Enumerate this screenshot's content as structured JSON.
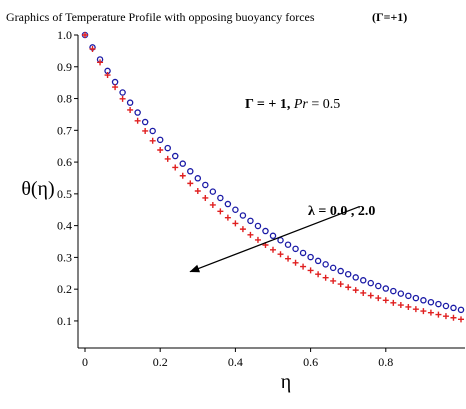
{
  "chart_data": {
    "type": "scatter",
    "title": "Graphics of Temperature Profile with opposing buoyancy forces",
    "title_suffix": "(Γ=+1)",
    "xlabel": "η",
    "ylabel": "θ(η)",
    "xlim": [
      0,
      1.0
    ],
    "ylim": [
      0.04,
      1.0
    ],
    "x_ticks": [
      0,
      0.2,
      0.4,
      0.6,
      0.8
    ],
    "x_tick_labels": [
      "0",
      "0.2",
      "0.4",
      "0.6",
      "0.8"
    ],
    "y_ticks": [
      0.1,
      0.2,
      0.3,
      0.4,
      0.5,
      0.6,
      0.7,
      0.8,
      0.9,
      1.0
    ],
    "y_tick_labels": [
      "0.1",
      "0.2",
      "0.3",
      "0.4",
      "0.5",
      "0.6",
      "0.7",
      "0.8",
      "0.9",
      "1.0"
    ],
    "grid": false,
    "series": [
      {
        "marker": "circle",
        "color": "#1a1aa6",
        "x": [
          0,
          0.02,
          0.04,
          0.06,
          0.08,
          0.1,
          0.12,
          0.14,
          0.16,
          0.18,
          0.2,
          0.22,
          0.24,
          0.26,
          0.28,
          0.3,
          0.32,
          0.34,
          0.36,
          0.38,
          0.4,
          0.42,
          0.44,
          0.46,
          0.48,
          0.5,
          0.52,
          0.54,
          0.56,
          0.58,
          0.6,
          0.62,
          0.64,
          0.66,
          0.68,
          0.7,
          0.72,
          0.74,
          0.76,
          0.78,
          0.8,
          0.82,
          0.84,
          0.86,
          0.88,
          0.9,
          0.92,
          0.94,
          0.96,
          0.98,
          1.0
        ],
        "y": [
          1.0,
          0.961,
          0.923,
          0.887,
          0.852,
          0.819,
          0.787,
          0.756,
          0.726,
          0.698,
          0.67,
          0.644,
          0.619,
          0.595,
          0.571,
          0.549,
          0.528,
          0.507,
          0.487,
          0.468,
          0.45,
          0.432,
          0.415,
          0.399,
          0.383,
          0.368,
          0.354,
          0.34,
          0.327,
          0.314,
          0.301,
          0.289,
          0.278,
          0.267,
          0.257,
          0.247,
          0.237,
          0.228,
          0.219,
          0.21,
          0.202,
          0.194,
          0.186,
          0.179,
          0.172,
          0.165,
          0.159,
          0.153,
          0.147,
          0.141,
          0.135
        ]
      },
      {
        "marker": "plus",
        "color": "#e02020",
        "x": [
          0,
          0.02,
          0.04,
          0.06,
          0.08,
          0.1,
          0.12,
          0.14,
          0.16,
          0.18,
          0.2,
          0.22,
          0.24,
          0.26,
          0.28,
          0.3,
          0.32,
          0.34,
          0.36,
          0.38,
          0.4,
          0.42,
          0.44,
          0.46,
          0.48,
          0.5,
          0.52,
          0.54,
          0.56,
          0.58,
          0.6,
          0.62,
          0.64,
          0.66,
          0.68,
          0.7,
          0.72,
          0.74,
          0.76,
          0.78,
          0.8,
          0.82,
          0.84,
          0.86,
          0.88,
          0.9,
          0.92,
          0.94,
          0.96,
          0.98,
          1.0
        ],
        "y": [
          1.0,
          0.956,
          0.914,
          0.874,
          0.836,
          0.799,
          0.764,
          0.73,
          0.698,
          0.667,
          0.638,
          0.61,
          0.583,
          0.557,
          0.533,
          0.509,
          0.487,
          0.465,
          0.445,
          0.425,
          0.407,
          0.389,
          0.371,
          0.355,
          0.339,
          0.324,
          0.31,
          0.296,
          0.283,
          0.271,
          0.259,
          0.247,
          0.236,
          0.226,
          0.216,
          0.206,
          0.197,
          0.188,
          0.18,
          0.172,
          0.165,
          0.157,
          0.15,
          0.144,
          0.137,
          0.131,
          0.126,
          0.12,
          0.115,
          0.11,
          0.105
        ]
      }
    ],
    "annotations": {
      "gamma_pr_gamma": "Γ = + 1",
      "gamma_pr_pr": "Pr",
      "gamma_pr_value": " = 0.5",
      "lambda_text": "λ = 0.0 , 2.0",
      "arrow_from": [
        0.73,
        0.46
      ],
      "arrow_to": [
        0.28,
        0.255
      ]
    }
  }
}
